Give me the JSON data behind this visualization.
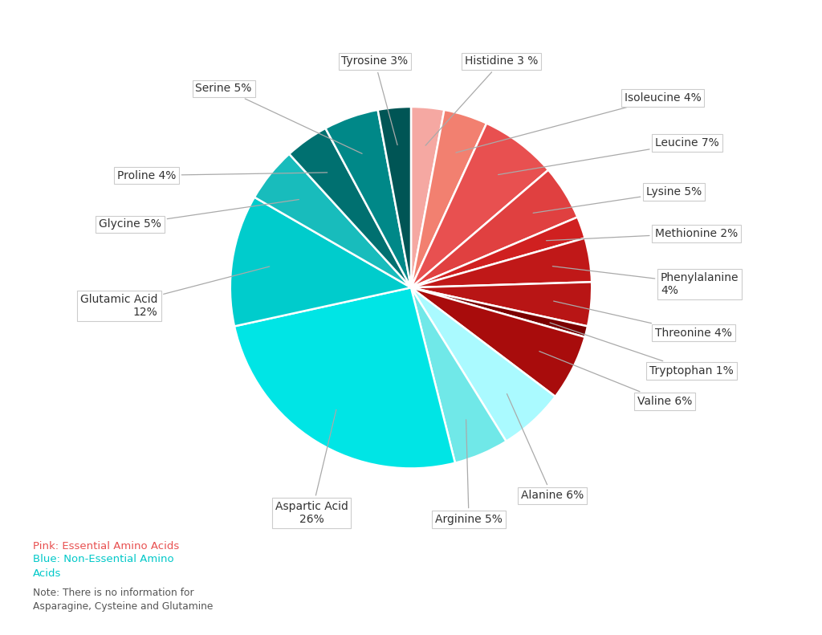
{
  "labels": [
    "Histidine 3 %",
    "Isoleucine 4%",
    "Leucine 7%",
    "Lysine 5%",
    "Methionine 2%",
    "Phenylalanine\n4%",
    "Threonine 4%",
    "Tryptophan 1%",
    "Valine 6%",
    "Alanine 6%",
    "Arginine 5%",
    "Aspartic Acid\n26%",
    "Glutamic Acid\n12%",
    "Glycine 5%",
    "Proline 4%",
    "Serine 5%",
    "Tyrosine 3%"
  ],
  "values": [
    3,
    4,
    7,
    5,
    2,
    4,
    4,
    1,
    6,
    6,
    5,
    26,
    12,
    5,
    4,
    5,
    3
  ],
  "colors": [
    "#F5A8A2",
    "#F28070",
    "#E85050",
    "#E04040",
    "#D02020",
    "#C01818",
    "#B81515",
    "#7A0000",
    "#A80C0C",
    "#AAFAFF",
    "#70E8E8",
    "#00E5E5",
    "#00CCCC",
    "#18BCBC",
    "#007070",
    "#008888",
    "#005555"
  ],
  "background_color": "#ffffff",
  "note_color": "#555555",
  "legend_essential_color": "#E85050",
  "legend_nonessential_color": "#00C8C8",
  "wedge_linewidth": 1.8,
  "wedge_edgecolor": "#ffffff"
}
